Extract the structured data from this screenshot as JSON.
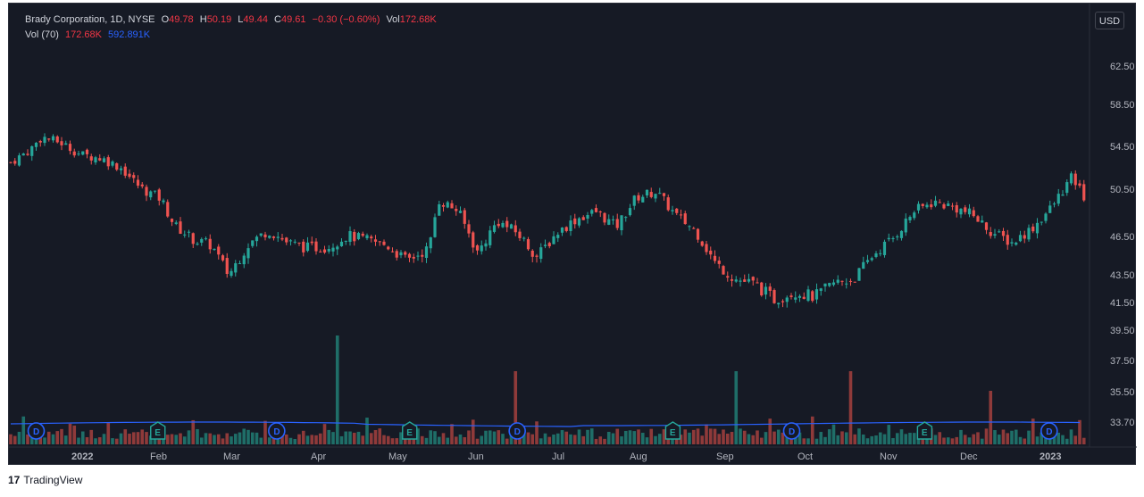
{
  "legend": {
    "symbol": "Brady Corporation, 1D, NYSE",
    "open_label": "O",
    "open": "49.78",
    "high_label": "H",
    "high": "50.19",
    "low_label": "L",
    "low": "49.44",
    "close_label": "C",
    "close": "49.61",
    "change": "−0.30 (−0.60%)",
    "vol_label": "Vol",
    "vol": "172.68K",
    "vol_ma_label": "Vol (70)",
    "vol_value": "172.68K",
    "vol_ma_value": "592.891K"
  },
  "currency_button": "USD",
  "footer": {
    "logo": "17",
    "brand": "TradingView"
  },
  "colors": {
    "up": "#26a69a",
    "down": "#ef5350",
    "ma": "#2962ff",
    "bg": "#161a25",
    "text": "#b2b5be"
  },
  "chart_data": {
    "type": "candlestick",
    "price_axis": {
      "ticks": [
        "62.50",
        "58.50",
        "54.50",
        "50.50",
        "46.50",
        "43.50",
        "41.50",
        "39.50",
        "37.50",
        "35.50",
        "33.70"
      ]
    },
    "time_axis": [
      "2022",
      "Feb",
      "Mar",
      "Apr",
      "May",
      "Jun",
      "Jul",
      "Aug",
      "Sep",
      "Oct",
      "Nov",
      "Dec",
      "2023"
    ],
    "price_series": [
      {
        "date": "2022-01-03",
        "close": 53.0
      },
      {
        "date": "2022-01-10",
        "close": 54.2
      },
      {
        "date": "2022-01-14",
        "close": 55.4
      },
      {
        "date": "2022-01-21",
        "close": 54.8
      },
      {
        "date": "2022-01-28",
        "close": 53.7
      },
      {
        "date": "2022-02-04",
        "close": 53.4
      },
      {
        "date": "2022-02-11",
        "close": 52.5
      },
      {
        "date": "2022-02-18",
        "close": 50.6
      },
      {
        "date": "2022-02-25",
        "close": 49.7
      },
      {
        "date": "2022-03-02",
        "close": 47.4
      },
      {
        "date": "2022-03-09",
        "close": 46.2
      },
      {
        "date": "2022-03-15",
        "close": 45.8
      },
      {
        "date": "2022-03-21",
        "close": 43.5
      },
      {
        "date": "2022-03-28",
        "close": 45.9
      },
      {
        "date": "2022-04-04",
        "close": 47.0
      },
      {
        "date": "2022-04-11",
        "close": 46.0
      },
      {
        "date": "2022-04-18",
        "close": 45.6
      },
      {
        "date": "2022-04-25",
        "close": 45.7
      },
      {
        "date": "2022-05-02",
        "close": 46.6
      },
      {
        "date": "2022-05-09",
        "close": 46.2
      },
      {
        "date": "2022-05-16",
        "close": 45.8
      },
      {
        "date": "2022-05-23",
        "close": 44.6
      },
      {
        "date": "2022-05-31",
        "close": 45.6
      },
      {
        "date": "2022-06-03",
        "close": 49.6
      },
      {
        "date": "2022-06-10",
        "close": 48.7
      },
      {
        "date": "2022-06-17",
        "close": 45.2
      },
      {
        "date": "2022-06-24",
        "close": 47.8
      },
      {
        "date": "2022-07-01",
        "close": 46.8
      },
      {
        "date": "2022-07-08",
        "close": 44.9
      },
      {
        "date": "2022-07-15",
        "close": 46.8
      },
      {
        "date": "2022-07-22",
        "close": 48.0
      },
      {
        "date": "2022-07-29",
        "close": 48.6
      },
      {
        "date": "2022-08-05",
        "close": 47.3
      },
      {
        "date": "2022-08-12",
        "close": 49.8
      },
      {
        "date": "2022-08-19",
        "close": 50.3
      },
      {
        "date": "2022-08-26",
        "close": 48.3
      },
      {
        "date": "2022-09-02",
        "close": 47.0
      },
      {
        "date": "2022-09-09",
        "close": 44.4
      },
      {
        "date": "2022-09-16",
        "close": 43.2
      },
      {
        "date": "2022-09-23",
        "close": 42.8
      },
      {
        "date": "2022-09-30",
        "close": 41.7
      },
      {
        "date": "2022-10-07",
        "close": 42.3
      },
      {
        "date": "2022-10-14",
        "close": 41.9
      },
      {
        "date": "2022-10-21",
        "close": 42.9
      },
      {
        "date": "2022-10-28",
        "close": 43.2
      },
      {
        "date": "2022-11-04",
        "close": 45.1
      },
      {
        "date": "2022-11-11",
        "close": 46.4
      },
      {
        "date": "2022-11-18",
        "close": 48.6
      },
      {
        "date": "2022-11-25",
        "close": 49.4
      },
      {
        "date": "2022-12-02",
        "close": 49.0
      },
      {
        "date": "2022-12-09",
        "close": 48.3
      },
      {
        "date": "2022-12-16",
        "close": 46.8
      },
      {
        "date": "2022-12-23",
        "close": 46.0
      },
      {
        "date": "2022-12-30",
        "close": 47.2
      },
      {
        "date": "2023-01-06",
        "close": 49.0
      },
      {
        "date": "2023-01-13",
        "close": 51.6
      },
      {
        "date": "2023-01-18",
        "close": 49.61
      }
    ],
    "volume_ma_period": 70,
    "volume_spikes": [
      {
        "date": "2022-04-29",
        "note": "largest"
      },
      {
        "date": "2022-06-30",
        "note": "large"
      },
      {
        "date": "2022-09-16",
        "note": "large"
      },
      {
        "date": "2022-10-27",
        "note": "large"
      },
      {
        "date": "2022-12-16",
        "note": "medium"
      }
    ],
    "markers": [
      {
        "label": "D",
        "date": "2022-01"
      },
      {
        "label": "E",
        "date": "2022-02-24"
      },
      {
        "label": "D",
        "date": "2022-04-07"
      },
      {
        "label": "E",
        "date": "2022-05-24"
      },
      {
        "label": "D",
        "date": "2022-07-01"
      },
      {
        "label": "E",
        "date": "2022-08-25"
      },
      {
        "label": "D",
        "date": "2022-10-06"
      },
      {
        "label": "E",
        "date": "2022-11-22"
      },
      {
        "label": "D",
        "date": "2023-01-05"
      }
    ]
  }
}
